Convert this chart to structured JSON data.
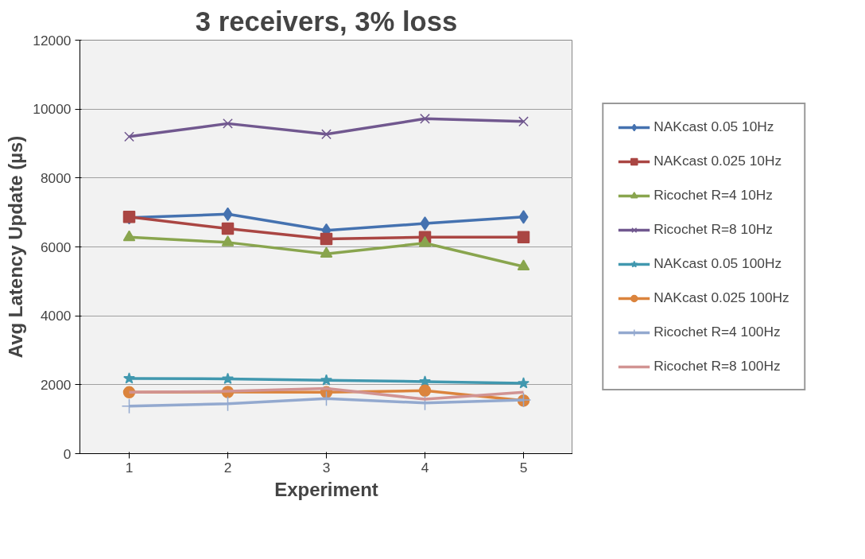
{
  "chart_data": {
    "type": "line",
    "title": "3 receivers, 3% loss",
    "xlabel": "Experiment",
    "ylabel": "Avg Latency Update (µs)",
    "categories": [
      "1",
      "2",
      "3",
      "4",
      "5"
    ],
    "ylim": [
      0,
      12000
    ],
    "yticks": [
      0,
      2000,
      4000,
      6000,
      8000,
      10000,
      12000
    ],
    "grid": "y",
    "legend": "right",
    "series": [
      {
        "name": "NAKcast 0.05 10Hz",
        "color": "#4572b0",
        "marker": "diamond",
        "values": [
          6850,
          6950,
          6480,
          6680,
          6870
        ]
      },
      {
        "name": "NAKcast 0.025 10Hz",
        "color": "#aa4643",
        "marker": "square",
        "values": [
          6870,
          6530,
          6230,
          6280,
          6280
        ]
      },
      {
        "name": "Ricochet R=4 10Hz",
        "color": "#89a54e",
        "marker": "triangle",
        "values": [
          6280,
          6130,
          5800,
          6110,
          5430
        ]
      },
      {
        "name": "Ricochet R=8 10Hz",
        "color": "#71588f",
        "marker": "x",
        "values": [
          9200,
          9580,
          9270,
          9720,
          9640
        ]
      },
      {
        "name": "NAKcast 0.05 100Hz",
        "color": "#4198af",
        "marker": "star",
        "values": [
          2180,
          2170,
          2130,
          2090,
          2040
        ]
      },
      {
        "name": "NAKcast 0.025 100Hz",
        "color": "#db843d",
        "marker": "circle",
        "values": [
          1780,
          1790,
          1780,
          1830,
          1540
        ]
      },
      {
        "name": "Ricochet R=4 100Hz",
        "color": "#93a9cf",
        "marker": "cross",
        "values": [
          1380,
          1450,
          1600,
          1470,
          1560
        ]
      },
      {
        "name": "Ricochet R=8 100Hz",
        "color": "#d19392",
        "marker": "none",
        "values": [
          1780,
          1810,
          1890,
          1580,
          1780
        ]
      }
    ]
  }
}
